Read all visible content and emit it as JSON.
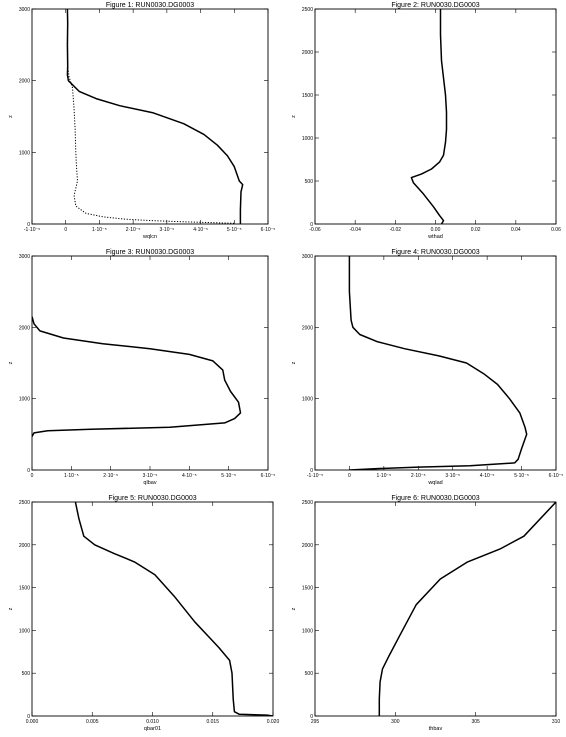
{
  "chart_data": [
    {
      "type": "line",
      "title": "Figure 1: RUN0030.DG0003",
      "xlabel": "wqlcn",
      "ylabel": "z",
      "xlim": [
        -1e-05,
        6e-05
      ],
      "ylim": [
        0,
        3000
      ],
      "xticks": [
        -1e-05,
        0,
        1e-05,
        2e-05,
        3e-05,
        4e-05,
        5e-05,
        6e-05
      ],
      "xtick_labels": [
        "-1·10⁻⁵",
        "0",
        "1·10⁻⁵",
        "2·10⁻⁵",
        "3·10⁻⁵",
        "4·10⁻⁵",
        "5·10⁻⁵",
        "6·10⁻⁵"
      ],
      "yticks": [
        0,
        1000,
        2000,
        3000
      ],
      "ytick_labels": [
        "0",
        "1000",
        "2000",
        "3000"
      ],
      "series": [
        {
          "style": "solid",
          "x": [
            5e-07,
            6e-07,
            5e-07,
            6e-07,
            5e-07,
            8e-07,
            4e-06,
            9e-06,
            1.6e-05,
            2.6e-05,
            3.5e-05,
            4.1e-05,
            4.5e-05,
            4.8e-05,
            5e-05,
            5.15e-05,
            5.25e-05,
            5.2e-05,
            5.18e-05,
            5.18e-05
          ],
          "y": [
            3000,
            2800,
            2500,
            2200,
            2080,
            2000,
            1850,
            1750,
            1650,
            1550,
            1400,
            1250,
            1100,
            950,
            800,
            600,
            550,
            450,
            200,
            0
          ]
        },
        {
          "style": "dotted",
          "x": [
            5e-07,
            6e-07,
            1e-06,
            2e-06,
            2.5e-06,
            2.8e-06,
            3e-06,
            3.2e-06,
            3.5e-06,
            3e-06,
            2.5e-06,
            3e-06,
            6e-06,
            1.1e-05,
            1.7e-05,
            2.4e-05,
            3.5e-05,
            5e-05
          ],
          "y": [
            3000,
            2200,
            2050,
            1900,
            1600,
            1300,
            1000,
            800,
            600,
            500,
            400,
            250,
            150,
            100,
            70,
            50,
            30,
            10
          ]
        }
      ]
    },
    {
      "type": "line",
      "title": "Figure 2: RUN0030.DG0003",
      "xlabel": "wthad",
      "ylabel": "z",
      "xlim": [
        -0.06,
        0.06
      ],
      "ylim": [
        0,
        2500
      ],
      "xticks": [
        -0.06,
        -0.04,
        -0.02,
        0,
        0.02,
        0.04,
        0.06
      ],
      "xtick_labels": [
        "-0.06",
        "-0.04",
        "-0.02",
        "0.00",
        "0.02",
        "0.04",
        "0.06"
      ],
      "yticks": [
        0,
        500,
        1000,
        1500,
        2000,
        2500
      ],
      "ytick_labels": [
        "0",
        "500",
        "1000",
        "1500",
        "2000",
        "2500"
      ],
      "series": [
        {
          "style": "solid",
          "x": [
            0.0025,
            0.0025,
            0.003,
            0.004,
            0.005,
            0.0055,
            0.0055,
            0.005,
            0.004,
            0.002,
            -0.002,
            -0.007,
            -0.012,
            -0.011,
            -0.006,
            -0.001,
            0.002,
            0.004,
            0.003
          ],
          "y": [
            2500,
            2200,
            1900,
            1700,
            1500,
            1300,
            1100,
            950,
            800,
            720,
            640,
            580,
            540,
            480,
            350,
            200,
            100,
            40,
            0
          ]
        }
      ]
    },
    {
      "type": "line",
      "title": "Figure 3: RUN0030.DG0003",
      "xlabel": "qlbav",
      "ylabel": "z",
      "xlim": [
        0,
        6e-05
      ],
      "ylim": [
        0,
        3000
      ],
      "xticks": [
        0,
        1e-05,
        2e-05,
        3e-05,
        4e-05,
        5e-05,
        6e-05
      ],
      "xtick_labels": [
        "0",
        "1·10⁻⁵",
        "2·10⁻⁵",
        "3·10⁻⁵",
        "4·10⁻⁵",
        "5·10⁻⁵",
        "6·10⁻⁵"
      ],
      "yticks": [
        0,
        1000,
        2000,
        3000
      ],
      "ytick_labels": [
        "0",
        "1000",
        "2000",
        "3000"
      ],
      "series": [
        {
          "style": "solid",
          "x": [
            0,
            5e-07,
            2e-06,
            8e-06,
            1.8e-05,
            3e-05,
            4e-05,
            4.6e-05,
            4.85e-05,
            4.9e-05,
            5.05e-05,
            5.25e-05,
            5.3e-05,
            5.15e-05,
            4.9e-05,
            3.5e-05,
            1.5e-05,
            4e-06,
            5e-07,
            0
          ],
          "y": [
            2150,
            2050,
            1950,
            1850,
            1770,
            1700,
            1620,
            1530,
            1400,
            1260,
            1100,
            950,
            800,
            720,
            660,
            600,
            570,
            550,
            520,
            470
          ]
        }
      ]
    },
    {
      "type": "line",
      "title": "Figure 4: RUN0030.DG0003",
      "xlabel": "wqlad",
      "ylabel": "z",
      "xlim": [
        -1e-05,
        6e-05
      ],
      "ylim": [
        0,
        3000
      ],
      "xticks": [
        -1e-05,
        0,
        1e-05,
        2e-05,
        3e-05,
        4e-05,
        5e-05,
        6e-05
      ],
      "xtick_labels": [
        "-1·10⁻⁵",
        "0",
        "1·10⁻⁵",
        "2·10⁻⁵",
        "3·10⁻⁵",
        "4·10⁻⁵",
        "5·10⁻⁵",
        "6·10⁻⁵"
      ],
      "yticks": [
        0,
        1000,
        2000,
        3000
      ],
      "ytick_labels": [
        "0",
        "1000",
        "2000",
        "3000"
      ],
      "series": [
        {
          "style": "solid",
          "x": [
            0,
            0,
            5e-07,
            1e-06,
            3e-06,
            8e-06,
            1.6e-05,
            2.6e-05,
            3.4e-05,
            3.9e-05,
            4.3e-05,
            4.65e-05,
            4.95e-05,
            5.1e-05,
            5.15e-05,
            5e-05,
            4.9e-05,
            4.8e-05,
            3.5e-05,
            2e-05,
            8e-06,
            0
          ],
          "y": [
            3000,
            2500,
            2100,
            2000,
            1900,
            1800,
            1700,
            1600,
            1500,
            1350,
            1200,
            1000,
            800,
            600,
            500,
            300,
            150,
            100,
            60,
            40,
            20,
            0
          ]
        }
      ]
    },
    {
      "type": "line",
      "title": "Figure 5: RUN0030.DG0003",
      "xlabel": "qbar01",
      "ylabel": "z",
      "xlim": [
        0,
        0.02
      ],
      "ylim": [
        0,
        2500
      ],
      "xticks": [
        0,
        0.005,
        0.01,
        0.015,
        0.02
      ],
      "xtick_labels": [
        "0.000",
        "0.005",
        "0.010",
        "0.015",
        "0.020"
      ],
      "yticks": [
        0,
        500,
        1000,
        1500,
        2000,
        2500
      ],
      "ytick_labels": [
        "0",
        "500",
        "1000",
        "1500",
        "2000",
        "2500"
      ],
      "series": [
        {
          "style": "solid",
          "x": [
            0.0036,
            0.0039,
            0.0043,
            0.0052,
            0.0068,
            0.0085,
            0.0102,
            0.0118,
            0.0135,
            0.0155,
            0.0164,
            0.0166,
            0.0167,
            0.0168,
            0.0172,
            0.0195,
            0.02
          ],
          "y": [
            2500,
            2300,
            2100,
            2000,
            1900,
            1800,
            1650,
            1400,
            1100,
            800,
            650,
            500,
            200,
            50,
            20,
            10,
            0
          ]
        }
      ]
    },
    {
      "type": "line",
      "title": "Figure 6: RUN0030.DG0003",
      "xlabel": "thbav",
      "ylabel": "z",
      "xlim": [
        295,
        310
      ],
      "ylim": [
        0,
        2500
      ],
      "xticks": [
        295,
        300,
        305,
        310
      ],
      "xtick_labels": [
        "295",
        "300",
        "305",
        "310"
      ],
      "yticks": [
        0,
        500,
        1000,
        1500,
        2000,
        2500
      ],
      "ytick_labels": [
        "0",
        "500",
        "1000",
        "1500",
        "2000",
        "2500"
      ],
      "series": [
        {
          "style": "solid",
          "x": [
            299.0,
            299.0,
            299.05,
            299.2,
            299.6,
            300.3,
            301.3,
            302.8,
            304.5,
            306.5,
            308.0,
            310.0
          ],
          "y": [
            0,
            200,
            400,
            550,
            700,
            950,
            1300,
            1600,
            1800,
            1950,
            2100,
            2500
          ]
        }
      ]
    }
  ]
}
